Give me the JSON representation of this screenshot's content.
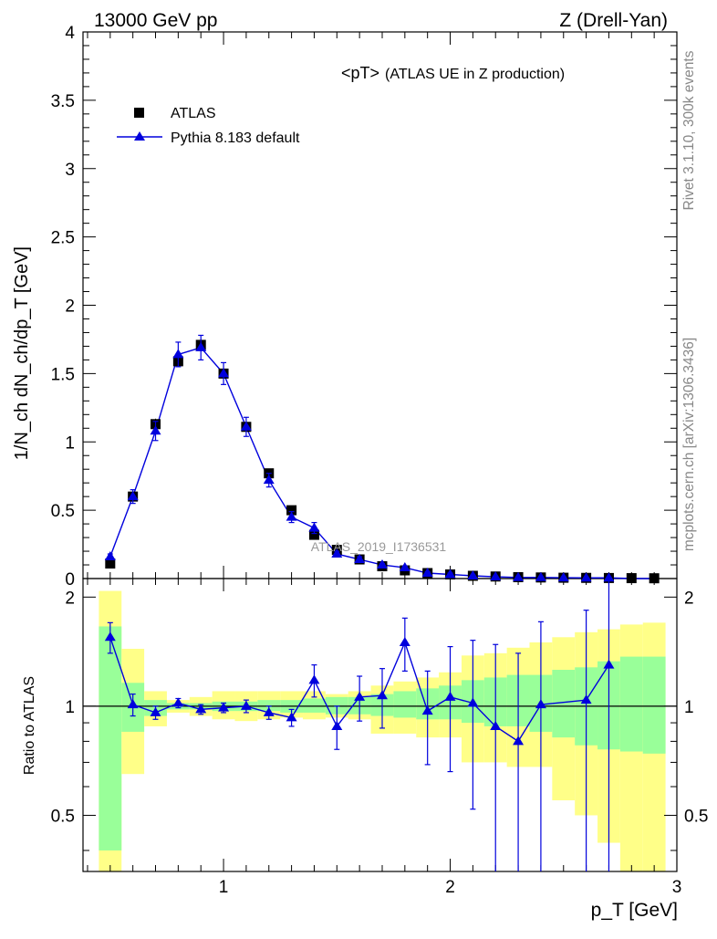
{
  "header": {
    "left": "13000 GeV pp",
    "right": "Z (Drell-Yan)"
  },
  "side_labels": {
    "rivet": "Rivet 3.1.10,  300k events",
    "mcplots": "mcplots.cern.ch [arXiv:1306.3436]"
  },
  "watermark": "ATLAS_2019_I1736531",
  "colors": {
    "data": "#000000",
    "mc": "#0000dd",
    "band_inner": "#99ff99",
    "band_outer": "#ffff88"
  },
  "chart_data": [
    {
      "type": "scatter",
      "title": "<pT>",
      "subtitle": "(ATLAS UE in Z production)",
      "ylabel": "1/N_ch dN_ch/dp_T [GeV]",
      "xlabel": "",
      "xlim": [
        0.38,
        3.0
      ],
      "ylim": [
        0,
        4
      ],
      "yticks": [
        "0",
        "0.5",
        "1",
        "1.5",
        "2",
        "2.5",
        "3",
        "3.5",
        "4"
      ],
      "x": [
        0.5,
        0.6,
        0.7,
        0.8,
        0.9,
        1.0,
        1.1,
        1.2,
        1.3,
        1.4,
        1.5,
        1.6,
        1.7,
        1.8,
        1.9,
        2.0,
        2.1,
        2.2,
        2.3,
        2.4,
        2.5,
        2.6,
        2.7,
        2.8,
        2.9
      ],
      "series": [
        {
          "name": "ATLAS",
          "marker": "square",
          "values": [
            0.11,
            0.6,
            1.13,
            1.59,
            1.71,
            1.5,
            1.11,
            0.77,
            0.5,
            0.32,
            0.21,
            0.14,
            0.09,
            0.06,
            0.04,
            0.03,
            0.02,
            0.015,
            0.01,
            0.008,
            0.006,
            0.005,
            0.004,
            0.003,
            0.002
          ],
          "errors": [
            0.005,
            0.03,
            0.04,
            0.04,
            0.04,
            0.04,
            0.03,
            0.02,
            0.02,
            0.01,
            0.008,
            0.006,
            0.004,
            0.003,
            0.002,
            0.002,
            0.001,
            0.001,
            0.001,
            0.001,
            0.001,
            0.001,
            0.001,
            0.001,
            0.001
          ]
        },
        {
          "name": "Pythia 8.183 default",
          "marker": "triangle",
          "values": [
            0.16,
            0.6,
            1.08,
            1.64,
            1.69,
            1.5,
            1.11,
            0.72,
            0.45,
            0.37,
            0.18,
            0.14,
            0.1,
            0.08,
            0.04,
            0.03,
            0.02,
            0.013,
            0.008,
            0.008,
            0.006,
            0.005,
            0.005,
            0.0,
            0.0
          ],
          "errors": [
            0.02,
            0.05,
            0.07,
            0.09,
            0.09,
            0.08,
            0.07,
            0.05,
            0.04,
            0.04,
            0.02,
            0.02,
            0.01,
            0.01,
            0.01,
            0.01,
            0.005,
            0.005,
            0.005,
            0.005,
            0.005,
            0.005,
            0.005,
            0.0,
            0.0
          ]
        }
      ]
    },
    {
      "type": "line",
      "title": "",
      "ylabel": "Ratio to ATLAS",
      "xlabel": "p_T [GeV]",
      "xlim": [
        0.38,
        3.0
      ],
      "ylim": [
        0.35,
        2.25
      ],
      "yticks": [
        "0.5",
        "1",
        "2"
      ],
      "xticks": [
        "1",
        "2",
        "3"
      ],
      "x": [
        0.5,
        0.6,
        0.7,
        0.8,
        0.9,
        1.0,
        1.1,
        1.2,
        1.3,
        1.4,
        1.5,
        1.6,
        1.7,
        1.8,
        1.9,
        2.0,
        2.1,
        2.2,
        2.3,
        2.4,
        2.6,
        2.7
      ],
      "series": [
        {
          "name": "Pythia 8.183 default / ATLAS",
          "values": [
            1.55,
            1.01,
            0.96,
            1.02,
            0.98,
            0.99,
            1.0,
            0.96,
            0.93,
            1.18,
            0.88,
            1.06,
            1.07,
            1.5,
            0.97,
            1.06,
            1.02,
            0.88,
            0.8,
            1.01,
            1.04,
            1.3
          ],
          "err_low": [
            0.15,
            0.07,
            0.04,
            0.03,
            0.03,
            0.03,
            0.04,
            0.04,
            0.05,
            0.12,
            0.12,
            0.15,
            0.2,
            0.25,
            0.28,
            0.4,
            0.5,
            0.6,
            0.6,
            0.7,
            0.8,
            1.0
          ],
          "err_high": [
            0.15,
            0.07,
            0.04,
            0.03,
            0.03,
            0.03,
            0.04,
            0.04,
            0.05,
            0.12,
            0.12,
            0.15,
            0.2,
            0.25,
            0.28,
            0.4,
            0.5,
            0.6,
            0.6,
            0.7,
            0.8,
            1.0
          ]
        }
      ],
      "bands": {
        "edges": [
          0.45,
          0.55,
          0.65,
          0.75,
          0.85,
          0.95,
          1.05,
          1.15,
          1.25,
          1.35,
          1.45,
          1.55,
          1.65,
          1.75,
          1.85,
          1.95,
          2.05,
          2.15,
          2.25,
          2.35,
          2.45,
          2.55,
          2.65,
          2.75,
          2.85,
          2.95
        ],
        "inner": [
          [
            0.4,
            1.66
          ],
          [
            0.85,
            1.16
          ],
          [
            0.94,
            1.04
          ],
          [
            0.98,
            1.02
          ],
          [
            0.98,
            1.02
          ],
          [
            0.97,
            1.03
          ],
          [
            0.97,
            1.03
          ],
          [
            0.97,
            1.04
          ],
          [
            0.96,
            1.04
          ],
          [
            0.96,
            1.05
          ],
          [
            0.95,
            1.06
          ],
          [
            0.95,
            1.06
          ],
          [
            0.94,
            1.08
          ],
          [
            0.93,
            1.1
          ],
          [
            0.92,
            1.12
          ],
          [
            0.92,
            1.14
          ],
          [
            0.9,
            1.18
          ],
          [
            0.88,
            1.2
          ],
          [
            0.88,
            1.22
          ],
          [
            0.85,
            1.22
          ],
          [
            0.82,
            1.26
          ],
          [
            0.78,
            1.28
          ],
          [
            0.76,
            1.33
          ],
          [
            0.75,
            1.37
          ],
          [
            0.74,
            1.37
          ]
        ],
        "outer": [
          [
            0.35,
            2.08
          ],
          [
            0.65,
            1.44
          ],
          [
            0.88,
            1.1
          ],
          [
            0.96,
            1.04
          ],
          [
            0.94,
            1.06
          ],
          [
            0.92,
            1.1
          ],
          [
            0.91,
            1.1
          ],
          [
            0.92,
            1.1
          ],
          [
            0.93,
            1.1
          ],
          [
            0.92,
            1.1
          ],
          [
            0.93,
            1.08
          ],
          [
            0.92,
            1.1
          ],
          [
            0.84,
            1.14
          ],
          [
            0.84,
            1.17
          ],
          [
            0.82,
            1.2
          ],
          [
            0.82,
            1.24
          ],
          [
            0.7,
            1.38
          ],
          [
            0.7,
            1.4
          ],
          [
            0.68,
            1.45
          ],
          [
            0.68,
            1.5
          ],
          [
            0.55,
            1.55
          ],
          [
            0.5,
            1.6
          ],
          [
            0.42,
            1.63
          ],
          [
            0.35,
            1.68
          ],
          [
            0.35,
            1.7
          ]
        ]
      }
    }
  ],
  "legend": [
    {
      "label": "ATLAS"
    },
    {
      "label": "Pythia 8.183 default"
    }
  ]
}
